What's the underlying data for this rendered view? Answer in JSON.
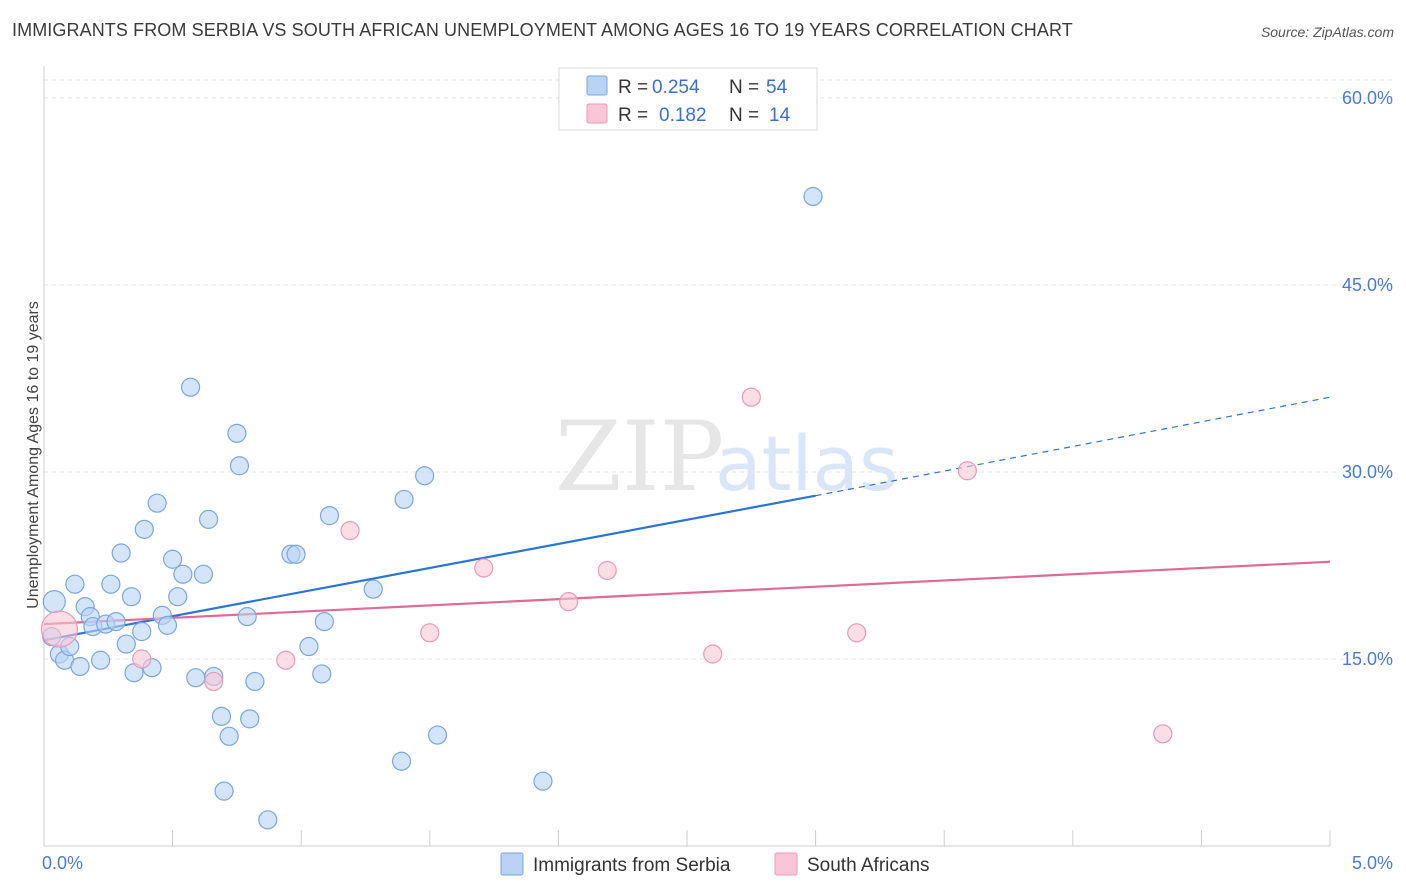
{
  "title": "IMMIGRANTS FROM SERBIA VS SOUTH AFRICAN UNEMPLOYMENT AMONG AGES 16 TO 19 YEARS CORRELATION CHART",
  "source": "Source: ZipAtlas.com",
  "watermark": {
    "zip": "ZIP",
    "atlas": "atlas"
  },
  "colors": {
    "serbia_fill": "#b9d3f5",
    "serbia_stroke": "#7aa6e0",
    "serbia_line": "#2b74d4",
    "sa_fill": "#f8c6d6",
    "sa_stroke": "#e99ab5",
    "sa_line": "#e06a96",
    "grid": "#e3e3e3",
    "axis_tick": "#4a7bd0"
  },
  "legend": {
    "rows": [
      {
        "r_label": "R =",
        "r_value": "0.254",
        "n_label": "N =",
        "n_value": "54"
      },
      {
        "r_label": "R =",
        "r_value": "0.182",
        "n_label": "N =",
        "n_value": "14"
      }
    ]
  },
  "chart_data": {
    "type": "scatter",
    "title": "IMMIGRANTS FROM SERBIA VS SOUTH AFRICAN UNEMPLOYMENT AMONG AGES 16 TO 19 YEARS CORRELATION CHART",
    "xlabel": "",
    "ylabel": "Unemployment Among Ages 16 to 19 years",
    "xlim": [
      0,
      5
    ],
    "ylim": [
      0,
      60
    ],
    "x_tick_labels": [
      "0.0%",
      "5.0%"
    ],
    "y_ticks": [
      15,
      30,
      45,
      60
    ],
    "y_tick_labels": [
      "15.0%",
      "30.0%",
      "45.0%",
      "60.0%"
    ],
    "series": [
      {
        "name": "Immigrants from Serbia",
        "points": [
          {
            "x": 0.03,
            "y": 16.8,
            "s": 9
          },
          {
            "x": 0.04,
            "y": 19.6,
            "s": 11
          },
          {
            "x": 0.06,
            "y": 15.4,
            "s": 9
          },
          {
            "x": 0.08,
            "y": 14.9,
            "s": 9
          },
          {
            "x": 0.1,
            "y": 16.0,
            "s": 9
          },
          {
            "x": 0.12,
            "y": 21.0,
            "s": 9
          },
          {
            "x": 0.14,
            "y": 14.4,
            "s": 9
          },
          {
            "x": 0.16,
            "y": 19.2,
            "s": 9
          },
          {
            "x": 0.18,
            "y": 18.4,
            "s": 9
          },
          {
            "x": 0.19,
            "y": 17.6,
            "s": 9
          },
          {
            "x": 0.22,
            "y": 14.9,
            "s": 9
          },
          {
            "x": 0.24,
            "y": 17.8,
            "s": 9
          },
          {
            "x": 0.26,
            "y": 21.0,
            "s": 9
          },
          {
            "x": 0.28,
            "y": 18.0,
            "s": 9
          },
          {
            "x": 0.3,
            "y": 23.5,
            "s": 9
          },
          {
            "x": 0.32,
            "y": 16.2,
            "s": 9
          },
          {
            "x": 0.34,
            "y": 20.0,
            "s": 9
          },
          {
            "x": 0.35,
            "y": 13.9,
            "s": 9
          },
          {
            "x": 0.38,
            "y": 17.2,
            "s": 9
          },
          {
            "x": 0.39,
            "y": 25.4,
            "s": 9
          },
          {
            "x": 0.42,
            "y": 14.3,
            "s": 9
          },
          {
            "x": 0.44,
            "y": 27.5,
            "s": 9
          },
          {
            "x": 0.46,
            "y": 18.5,
            "s": 9
          },
          {
            "x": 0.48,
            "y": 17.7,
            "s": 9
          },
          {
            "x": 0.5,
            "y": 23.0,
            "s": 9
          },
          {
            "x": 0.52,
            "y": 20.0,
            "s": 9
          },
          {
            "x": 0.54,
            "y": 21.8,
            "s": 9
          },
          {
            "x": 0.57,
            "y": 36.8,
            "s": 9
          },
          {
            "x": 0.59,
            "y": 13.5,
            "s": 9
          },
          {
            "x": 0.62,
            "y": 21.8,
            "s": 9
          },
          {
            "x": 0.64,
            "y": 26.2,
            "s": 9
          },
          {
            "x": 0.66,
            "y": 13.6,
            "s": 9
          },
          {
            "x": 0.69,
            "y": 10.4,
            "s": 9
          },
          {
            "x": 0.7,
            "y": 4.4,
            "s": 9
          },
          {
            "x": 0.72,
            "y": 8.8,
            "s": 9
          },
          {
            "x": 0.75,
            "y": 33.1,
            "s": 9
          },
          {
            "x": 0.76,
            "y": 30.5,
            "s": 9
          },
          {
            "x": 0.79,
            "y": 18.4,
            "s": 9
          },
          {
            "x": 0.8,
            "y": 10.2,
            "s": 9
          },
          {
            "x": 0.82,
            "y": 13.2,
            "s": 9
          },
          {
            "x": 0.87,
            "y": 2.1,
            "s": 9
          },
          {
            "x": 0.96,
            "y": 23.4,
            "s": 9
          },
          {
            "x": 0.98,
            "y": 23.4,
            "s": 9
          },
          {
            "x": 1.03,
            "y": 16.0,
            "s": 9
          },
          {
            "x": 1.08,
            "y": 13.8,
            "s": 9
          },
          {
            "x": 1.09,
            "y": 18.0,
            "s": 9
          },
          {
            "x": 1.11,
            "y": 26.5,
            "s": 9
          },
          {
            "x": 1.28,
            "y": 20.6,
            "s": 9
          },
          {
            "x": 1.39,
            "y": 6.8,
            "s": 9
          },
          {
            "x": 1.4,
            "y": 27.8,
            "s": 9
          },
          {
            "x": 1.48,
            "y": 29.7,
            "s": 9
          },
          {
            "x": 1.53,
            "y": 8.9,
            "s": 9
          },
          {
            "x": 1.94,
            "y": 5.2,
            "s": 9
          },
          {
            "x": 2.99,
            "y": 52.1,
            "s": 9
          }
        ],
        "trend": {
          "x0": 0.0,
          "y0": 16.5,
          "x1": 3.0,
          "y1": 28.1,
          "dashed_to_x": 5.0,
          "dashed_to_y": 36.0
        }
      },
      {
        "name": "South Africans",
        "points": [
          {
            "x": 0.06,
            "y": 17.4,
            "s": 18
          },
          {
            "x": 0.38,
            "y": 15.0,
            "s": 9
          },
          {
            "x": 0.66,
            "y": 13.2,
            "s": 9
          },
          {
            "x": 0.94,
            "y": 14.9,
            "s": 9
          },
          {
            "x": 1.19,
            "y": 25.3,
            "s": 9
          },
          {
            "x": 1.5,
            "y": 17.1,
            "s": 9
          },
          {
            "x": 1.71,
            "y": 22.3,
            "s": 9
          },
          {
            "x": 2.04,
            "y": 19.6,
            "s": 9
          },
          {
            "x": 2.19,
            "y": 22.1,
            "s": 9
          },
          {
            "x": 2.6,
            "y": 15.4,
            "s": 9
          },
          {
            "x": 2.75,
            "y": 36.0,
            "s": 9
          },
          {
            "x": 3.16,
            "y": 17.1,
            "s": 9
          },
          {
            "x": 3.59,
            "y": 30.1,
            "s": 9
          },
          {
            "x": 4.35,
            "y": 9.0,
            "s": 9
          }
        ],
        "trend": {
          "x0": 0.0,
          "y0": 17.8,
          "x1": 5.0,
          "y1": 22.8
        }
      }
    ]
  }
}
